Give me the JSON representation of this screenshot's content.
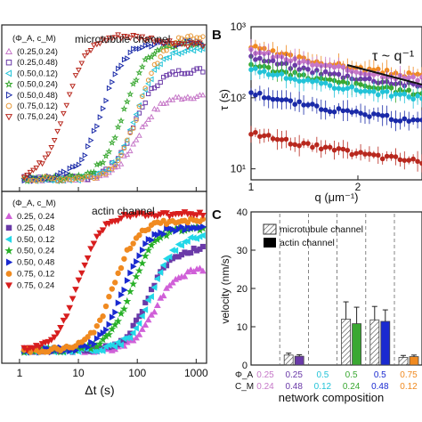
{
  "panel_labels": {
    "b": "B",
    "c": "C"
  },
  "panel_a": {
    "top": {
      "title": "microtubule channel",
      "legend_header": "(Φ_A, c_M)",
      "legend": [
        {
          "label": "(0.25,0.24)",
          "color": "#c678c8",
          "marker": "triangle-up-open"
        },
        {
          "label": "(0.25,0.48)",
          "color": "#6a3aa8",
          "marker": "square-open"
        },
        {
          "label": "(0.50,0.12)",
          "color": "#22c3d8",
          "marker": "triangle-left-open"
        },
        {
          "label": "(0.50,0.24)",
          "color": "#3aa832",
          "marker": "star-open"
        },
        {
          "label": "(0.50,0.48)",
          "color": "#1a2aa8",
          "marker": "triangle-right-open"
        },
        {
          "label": "(0.75,0.12)",
          "color": "#e89a3a",
          "marker": "circle-open"
        },
        {
          "label": "(0.75,0.24)",
          "color": "#b8281e",
          "marker": "triangle-down-open"
        }
      ]
    },
    "bottom": {
      "title": "actin channel",
      "legend_header": "(Φ_A, c_M)",
      "legend": [
        {
          "label": "0.25, 0.24",
          "color": "#d060d8",
          "marker": "triangle-up"
        },
        {
          "label": "0.25, 0.48",
          "color": "#6a3aa8",
          "marker": "square"
        },
        {
          "label": "0.50, 0.12",
          "color": "#22d8e8",
          "marker": "triangle-left"
        },
        {
          "label": "0.50, 0.24",
          "color": "#28b028",
          "marker": "star"
        },
        {
          "label": "0.50, 0.48",
          "color": "#1a2ad0",
          "marker": "triangle-right"
        },
        {
          "label": "0.75, 0.12",
          "color": "#f08a20",
          "marker": "circle"
        },
        {
          "label": "0.75, 0.24",
          "color": "#d81e1e",
          "marker": "triangle-down"
        }
      ]
    },
    "x_ticks": [
      "1",
      "10",
      "100",
      "1000"
    ],
    "xlabel": "Δt (s)"
  },
  "chart_data": [
    {
      "panel": "A",
      "type": "scatter",
      "note": "shared x axis (log), top plot = microtubule channel, bottom plot = actin channel",
      "xscale": "log",
      "xlim": [
        0.5,
        1500
      ],
      "xlabel": "Δt (s)",
      "x_ticks": [
        1,
        10,
        100,
        1000
      ],
      "series_top": [
        {
          "name": "(0.25,0.24)",
          "color": "#c678c8",
          "onset": 100,
          "plateau": 0.55
        },
        {
          "name": "(0.25,0.48)",
          "color": "#6a3aa8",
          "onset": 90,
          "plateau": 0.72
        },
        {
          "name": "(0.50,0.12)",
          "color": "#22c3d8",
          "onset": 95,
          "plateau": 0.85
        },
        {
          "name": "(0.50,0.24)",
          "color": "#3aa832",
          "onset": 60,
          "plateau": 0.9
        },
        {
          "name": "(0.50,0.48)",
          "color": "#1a2aa8",
          "onset": 25,
          "plateau": 0.9
        },
        {
          "name": "(0.75,0.12)",
          "color": "#e89a3a",
          "onset": 110,
          "plateau": 0.95
        },
        {
          "name": "(0.75,0.24)",
          "color": "#b8281e",
          "onset": 6,
          "plateau": 0.95
        }
      ],
      "series_bottom": [
        {
          "name": "0.25, 0.24",
          "color": "#d060d8",
          "onset": 200,
          "plateau": 0.6
        },
        {
          "name": "0.25, 0.48",
          "color": "#6a3aa8",
          "onset": 150,
          "plateau": 0.75
        },
        {
          "name": "0.50, 0.12",
          "color": "#22d8e8",
          "onset": 180,
          "plateau": 0.85
        },
        {
          "name": "0.50, 0.24",
          "color": "#28b028",
          "onset": 80,
          "plateau": 0.9
        },
        {
          "name": "0.50, 0.48",
          "color": "#1a2ad0",
          "onset": 60,
          "plateau": 0.9
        },
        {
          "name": "0.75, 0.12",
          "color": "#f08a20",
          "onset": 40,
          "plateau": 0.95
        },
        {
          "name": "0.75, 0.24",
          "color": "#d81e1e",
          "onset": 10,
          "plateau": 1.0
        }
      ]
    },
    {
      "panel": "B",
      "type": "scatter",
      "xscale": "linear",
      "yscale": "log",
      "xlim": [
        1,
        2.6
      ],
      "ylim": [
        7,
        1000
      ],
      "xlabel": "q (μm⁻¹)",
      "ylabel": "τ (s)",
      "x_ticks": [
        "1",
        "2"
      ],
      "y_ticks": [
        "10¹",
        "10²",
        "10³"
      ],
      "annotation": "τ ~ q⁻¹",
      "series": [
        {
          "color": "#f08a20",
          "tau_at_q1": 520
        },
        {
          "color": "#c678c8",
          "tau_at_q1": 470
        },
        {
          "color": "#6a3aa8",
          "tau_at_q1": 380
        },
        {
          "color": "#3aa832",
          "tau_at_q1": 300
        },
        {
          "color": "#22c3d8",
          "tau_at_q1": 260
        },
        {
          "color": "#1a2aa8",
          "tau_at_q1": 120
        },
        {
          "color": "#b8281e",
          "tau_at_q1": 33
        }
      ]
    },
    {
      "panel": "C",
      "type": "bar",
      "ylabel": "velocity (nm/s)",
      "ylim": [
        0,
        40
      ],
      "y_ticks": [
        "0",
        "10",
        "20",
        "30",
        "40"
      ],
      "xlabel": "network composition",
      "legend": [
        "microtubule channel",
        "actin channel"
      ],
      "categories": [
        {
          "phi": "0.25",
          "cm": "0.24",
          "color": "#c678c8"
        },
        {
          "phi": "0.25",
          "cm": "0.48",
          "color": "#6a3aa8"
        },
        {
          "phi": "0.5",
          "cm": "0.12",
          "color": "#22c3d8"
        },
        {
          "phi": "0.5",
          "cm": "0.24",
          "color": "#3aa832"
        },
        {
          "phi": "0.5",
          "cm": "0.48",
          "color": "#1a2ad0"
        },
        {
          "phi": "0.75",
          "cm": "0.12",
          "color": "#f08a20"
        }
      ],
      "series": [
        {
          "name": "microtubule channel",
          "values": [
            0,
            2.6,
            0,
            12,
            11.8,
            2.0
          ],
          "errors": [
            0,
            0.5,
            0,
            4.5,
            3.5,
            0.5
          ]
        },
        {
          "name": "actin channel",
          "values": [
            0,
            2.3,
            0,
            10.8,
            11.4,
            2.2
          ],
          "errors": [
            0,
            0.4,
            0,
            4.3,
            3.0,
            0.4
          ]
        }
      ],
      "row_labels": {
        "phi": "Φ_A",
        "cm": "C_M"
      }
    }
  ],
  "panel_b_labels": {
    "ylabel": "τ (s)",
    "xlabel": "q (μm⁻¹)",
    "y_ticks": [
      "10³",
      "10²",
      "10¹"
    ],
    "x_ticks": [
      "1",
      "2"
    ],
    "annotation": "τ ~ q⁻¹"
  },
  "panel_c_labels": {
    "ylabel": "velocity (nm/s)",
    "y_ticks": [
      "40",
      "30",
      "20",
      "10",
      "0"
    ],
    "legend": [
      "microtubule channel",
      "actin channel"
    ],
    "row_phi": "Φ_A",
    "row_cm": "C_M",
    "xlabel": "network composition"
  }
}
